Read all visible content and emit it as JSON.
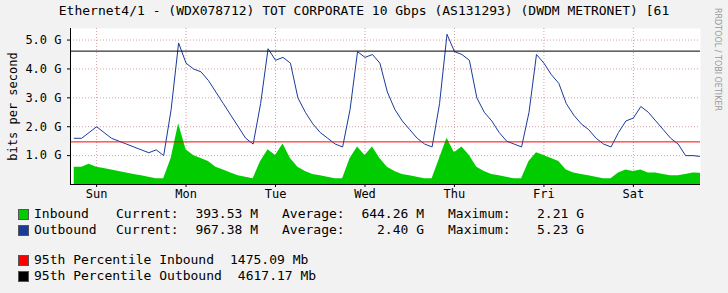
{
  "chart_data": {
    "type": "line",
    "title": "Ethernet4/1 - (WDX078712) TOT CORPORATE 10 Gbps (AS131293) (DWDM METRONET) [61",
    "y_label": "bits per second",
    "watermark": "RRDTOOL / TOBI OETIKER",
    "grid": true,
    "xlim": [
      5,
      174
    ],
    "xticks": [
      {
        "value": 12,
        "label": "Sun"
      },
      {
        "value": 36,
        "label": "Mon"
      },
      {
        "value": 60,
        "label": "Tue"
      },
      {
        "value": 84,
        "label": "Wed"
      },
      {
        "value": 108,
        "label": "Thu"
      },
      {
        "value": 132,
        "label": "Fri"
      },
      {
        "value": 156,
        "label": "Sat"
      }
    ],
    "ylim": [
      0,
      5400000000.0
    ],
    "yticks": [
      {
        "value": 1000000000.0,
        "label": "1.0 G"
      },
      {
        "value": 2000000000.0,
        "label": "2.0 G"
      },
      {
        "value": 3000000000.0,
        "label": "3.0 G"
      },
      {
        "value": 4000000000.0,
        "label": "4.0 G"
      },
      {
        "value": 5000000000.0,
        "label": "5.0 G"
      }
    ],
    "x": [
      6,
      8,
      10,
      12,
      14,
      16,
      18,
      20,
      22,
      24,
      26,
      28,
      30,
      32,
      34,
      36,
      38,
      40,
      42,
      44,
      46,
      48,
      50,
      52,
      54,
      56,
      58,
      60,
      62,
      64,
      66,
      68,
      70,
      72,
      74,
      76,
      78,
      80,
      82,
      84,
      86,
      88,
      90,
      92,
      94,
      96,
      98,
      100,
      102,
      104,
      106,
      108,
      110,
      112,
      114,
      116,
      118,
      120,
      122,
      124,
      126,
      128,
      130,
      132,
      134,
      136,
      138,
      140,
      142,
      144,
      146,
      148,
      150,
      152,
      154,
      156,
      158,
      160,
      162,
      164,
      166,
      168,
      170,
      172,
      174
    ],
    "stat_labels": [
      "Current:",
      "Average:",
      "Maximum:"
    ],
    "series": [
      {
        "name": "Inbound",
        "type": "area",
        "color": "#00cc00",
        "stats": [
          "393.53 M",
          "644.26 M",
          "2.21 G"
        ],
        "values": [
          600000000.0,
          600000000.0,
          700000000.0,
          600000000.0,
          550000000.0,
          500000000.0,
          450000000.0,
          400000000.0,
          350000000.0,
          300000000.0,
          250000000.0,
          200000000.0,
          200000000.0,
          900000000.0,
          2100000000.0,
          1200000000.0,
          1000000000.0,
          900000000.0,
          800000000.0,
          600000000.0,
          500000000.0,
          400000000.0,
          300000000.0,
          250000000.0,
          200000000.0,
          800000000.0,
          1200000000.0,
          1000000000.0,
          1400000000.0,
          900000000.0,
          600000000.0,
          450000000.0,
          350000000.0,
          300000000.0,
          250000000.0,
          200000000.0,
          200000000.0,
          900000000.0,
          1300000000.0,
          1000000000.0,
          1300000000.0,
          900000000.0,
          600000000.0,
          450000000.0,
          350000000.0,
          300000000.0,
          250000000.0,
          200000000.0,
          200000000.0,
          900000000.0,
          1600000000.0,
          1100000000.0,
          1300000000.0,
          1000000000.0,
          600000000.0,
          450000000.0,
          350000000.0,
          300000000.0,
          250000000.0,
          200000000.0,
          200000000.0,
          800000000.0,
          1100000000.0,
          1000000000.0,
          900000000.0,
          800000000.0,
          500000000.0,
          400000000.0,
          350000000.0,
          300000000.0,
          250000000.0,
          200000000.0,
          200000000.0,
          400000000.0,
          500000000.0,
          450000000.0,
          500000000.0,
          400000000.0,
          400000000.0,
          350000000.0,
          300000000.0,
          300000000.0,
          350000000.0,
          400000000.0,
          390000000.0
        ]
      },
      {
        "name": "Outbound",
        "type": "line",
        "color": "#1a3a9c",
        "stats": [
          "967.38 M",
          "2.40 G",
          "5.23 G"
        ],
        "values": [
          1600000000.0,
          1600000000.0,
          1800000000.0,
          2000000000.0,
          1800000000.0,
          1600000000.0,
          1500000000.0,
          1400000000.0,
          1300000000.0,
          1200000000.0,
          1100000000.0,
          1200000000.0,
          1000000000.0,
          2600000000.0,
          4900000000.0,
          4200000000.0,
          4000000000.0,
          3900000000.0,
          3600000000.0,
          3200000000.0,
          2800000000.0,
          2400000000.0,
          2000000000.0,
          1600000000.0,
          1400000000.0,
          2800000000.0,
          4700000000.0,
          4300000000.0,
          4400000000.0,
          4200000000.0,
          3000000000.0,
          2500000000.0,
          2100000000.0,
          1800000000.0,
          1600000000.0,
          1400000000.0,
          1300000000.0,
          2600000000.0,
          4600000000.0,
          4400000000.0,
          4500000000.0,
          4200000000.0,
          3200000000.0,
          2600000000.0,
          2200000000.0,
          1900000000.0,
          1600000000.0,
          1400000000.0,
          1300000000.0,
          2800000000.0,
          5200000000.0,
          4600000000.0,
          4500000000.0,
          4300000000.0,
          3000000000.0,
          2500000000.0,
          2200000000.0,
          1800000000.0,
          1500000000.0,
          1400000000.0,
          1300000000.0,
          2500000000.0,
          4500000000.0,
          4200000000.0,
          3800000000.0,
          3500000000.0,
          2800000000.0,
          2400000000.0,
          2100000000.0,
          1900000000.0,
          1600000000.0,
          1400000000.0,
          1300000000.0,
          1800000000.0,
          2200000000.0,
          2300000000.0,
          2700000000.0,
          2500000000.0,
          2200000000.0,
          1900000000.0,
          1600000000.0,
          1400000000.0,
          1000000000.0,
          1000000000.0,
          970000000.0
        ]
      }
    ],
    "percentiles": [
      {
        "name": "95th Percentile Inbound",
        "value": 1475090000.0,
        "label": "1475.09 Mb",
        "color": "#ff0000"
      },
      {
        "name": "95th Percentile Outbound",
        "value": 4617170000.0,
        "label": "4617.17 Mb",
        "color": "#000000"
      }
    ]
  }
}
